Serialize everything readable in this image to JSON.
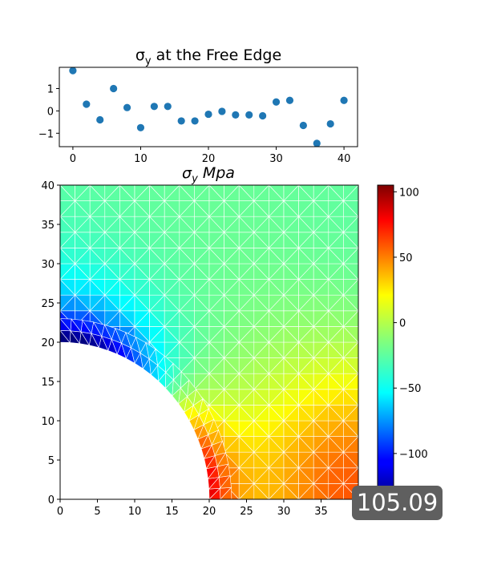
{
  "chart_data": [
    {
      "type": "scatter",
      "title": "σ_y at the Free Edge",
      "title_parts": {
        "sym": "σ",
        "sub": "y",
        "rest": " at the Free Edge"
      },
      "color": "#1f77b4",
      "x": [
        0,
        2,
        4,
        6,
        8,
        10,
        12,
        14,
        16,
        18,
        20,
        22,
        24,
        26,
        28,
        30,
        32,
        34,
        36,
        38,
        40
      ],
      "y": [
        1.8,
        0.3,
        -0.4,
        1.0,
        0.15,
        -0.75,
        0.2,
        0.2,
        -0.45,
        -0.45,
        -0.15,
        -0.02,
        -0.18,
        -0.18,
        -0.22,
        0.4,
        0.47,
        -0.65,
        -1.45,
        -0.58,
        0.47
      ],
      "xlim": [
        -2,
        42
      ],
      "ylim": [
        -1.6,
        1.95
      ],
      "xticks": [
        "0",
        "10",
        "20",
        "30",
        "40"
      ],
      "xtick_values": [
        0,
        10,
        20,
        30,
        40
      ],
      "yticks": [
        "−1",
        "0",
        "1"
      ],
      "ytick_values": [
        -1,
        0,
        1
      ]
    },
    {
      "type": "heatmap",
      "title": "σ_y Mpa",
      "title_parts": {
        "sym": "σ",
        "sub": "y",
        "rest": " Mpa"
      },
      "colormap": "jet",
      "mesh_color": "#ffffff",
      "hole": {
        "center": [
          0,
          0
        ],
        "radius": 20
      },
      "xlim": [
        0,
        40
      ],
      "ylim": [
        0,
        40
      ],
      "xticks": [
        "0",
        "5",
        "10",
        "15",
        "20",
        "25",
        "30",
        "35",
        "40"
      ],
      "xtick_values": [
        0,
        5,
        10,
        15,
        20,
        25,
        30,
        35,
        40
      ],
      "yticks": [
        "0",
        "5",
        "10",
        "15",
        "20",
        "25",
        "30",
        "35",
        "40"
      ],
      "ytick_values": [
        0,
        5,
        10,
        15,
        20,
        25,
        30,
        35,
        40
      ],
      "value_range": [
        -135,
        105.09
      ],
      "colorbar_ticks": [
        "−100",
        "−50",
        "0",
        "50",
        "100"
      ],
      "colorbar_tick_values": [
        -100,
        -50,
        0,
        50,
        100
      ],
      "hover_value": "105.09"
    }
  ]
}
